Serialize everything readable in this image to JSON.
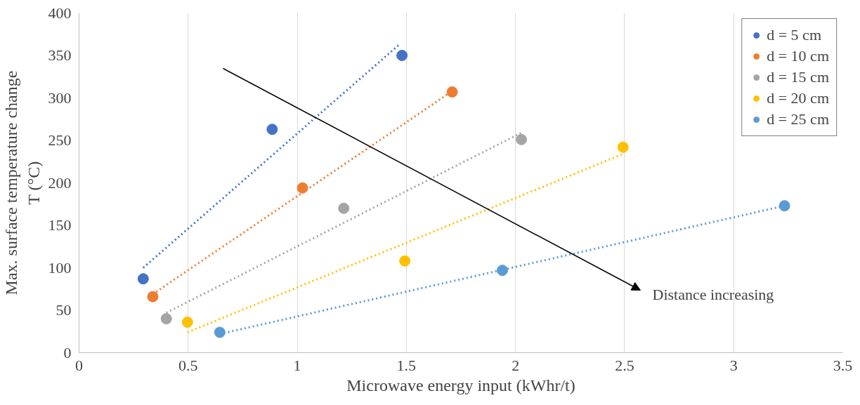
{
  "chart_data": {
    "type": "scatter",
    "xlabel": "Microwave energy input (kWhr/t)",
    "ylabel": "Max. surface temperature change\nT (°C)",
    "xlim": [
      0,
      3.5
    ],
    "xticks": [
      0,
      0.5,
      1,
      1.5,
      2,
      2.5,
      3,
      3.5
    ],
    "ylim": [
      0,
      400
    ],
    "yticks": [
      0,
      50,
      100,
      150,
      200,
      250,
      300,
      350,
      400
    ],
    "grid": "x",
    "legend": "top right",
    "marker": "circle",
    "series": [
      {
        "name": "d = 5 cm",
        "color": "#4472c4",
        "x": [
          0.294,
          0.885,
          1.48
        ],
        "values": [
          87,
          263,
          350
        ]
      },
      {
        "name": "d = 10 cm",
        "color": "#ed7d31",
        "x": [
          0.338,
          1.024,
          1.71
        ],
        "values": [
          66,
          194,
          307
        ]
      },
      {
        "name": "d = 15 cm",
        "color": "#a5a5a5",
        "x": [
          0.4,
          1.213,
          2.027
        ],
        "values": [
          40,
          170,
          251
        ]
      },
      {
        "name": "d = 20 cm",
        "color": "#ffc000",
        "x": [
          0.497,
          1.493,
          2.493
        ],
        "values": [
          36,
          108,
          242
        ]
      },
      {
        "name": "d = 25 cm",
        "color": "#5b9bd5",
        "x": [
          0.645,
          1.94,
          3.233
        ],
        "values": [
          24,
          97,
          173
        ]
      },
      {
        "type": "line",
        "line_style": "dotted",
        "marker": "none",
        "color": "#4472c4",
        "x": [
          0.294,
          1.473
        ],
        "values": [
          100,
          364
        ]
      },
      {
        "type": "line",
        "line_style": "dotted",
        "marker": "none",
        "color": "#ed7d31",
        "x": [
          0.338,
          1.71
        ],
        "values": [
          69,
          308
        ]
      },
      {
        "type": "line",
        "line_style": "dotted",
        "marker": "none",
        "color": "#a5a5a5",
        "x": [
          0.4,
          2.027
        ],
        "values": [
          47,
          259
        ]
      },
      {
        "type": "line",
        "line_style": "dotted",
        "marker": "none",
        "color": "#ffc000",
        "x": [
          0.497,
          2.493
        ],
        "values": [
          24,
          234
        ]
      },
      {
        "type": "line",
        "line_style": "dotted",
        "marker": "none",
        "color": "#5b9bd5",
        "x": [
          0.645,
          3.233
        ],
        "values": [
          22,
          173
        ]
      }
    ],
    "annotations": [
      "Distance increasing"
    ]
  }
}
